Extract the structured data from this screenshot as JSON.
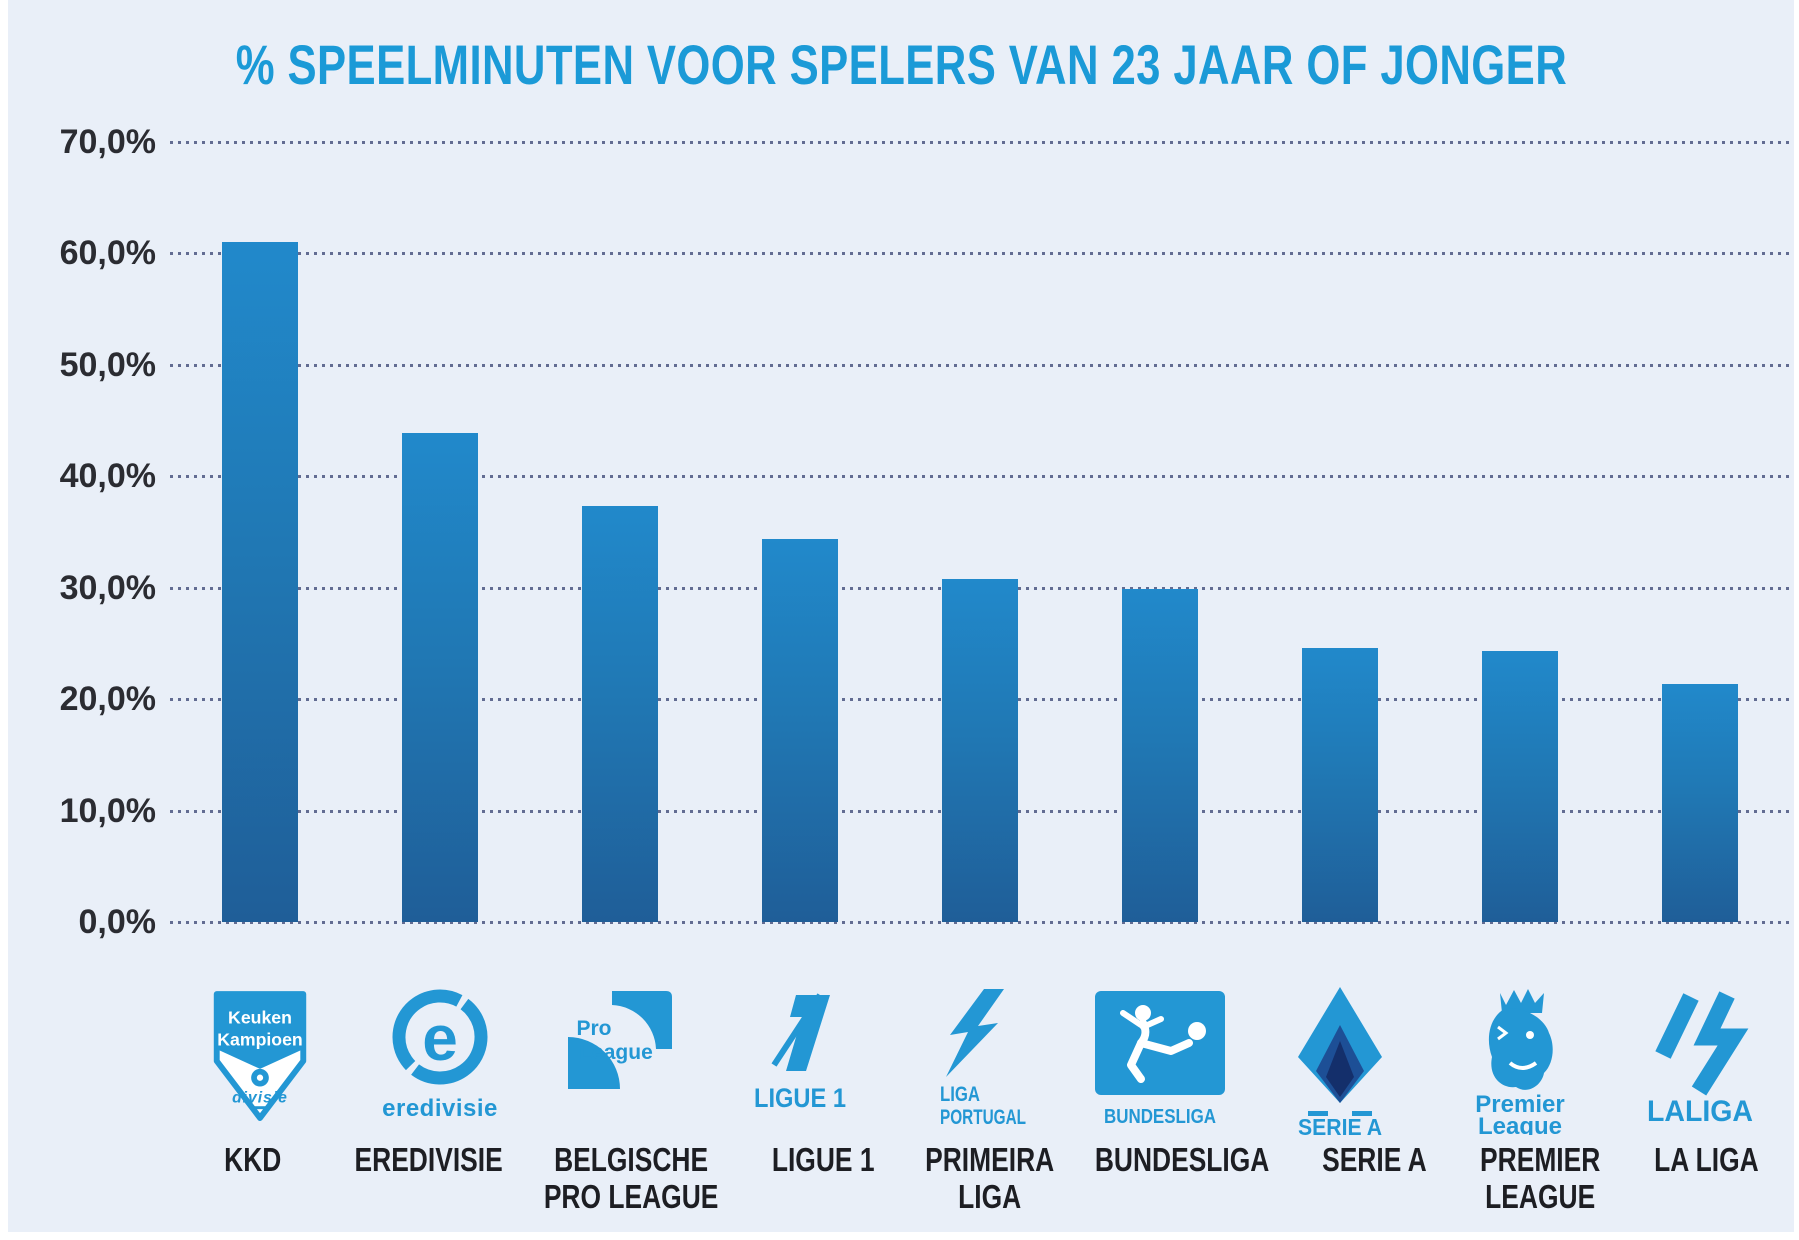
{
  "title": "% SPEELMINUTEN VOOR SPELERS VAN 23 JAAR OF JONGER",
  "chart_data": {
    "type": "bar",
    "title": "% SPEELMINUTEN VOOR SPELERS VAN 23 JAAR OF JONGER",
    "categories": [
      "KKD",
      "EREDIVISIE",
      "BELGISCHE PRO LEAGUE",
      "LIGUE 1",
      "PRIMEIRA LIGA",
      "BUNDESLIGA",
      "SERIE A",
      "PREMIER LEAGUE",
      "LA LIGA"
    ],
    "values": [
      61.0,
      43.9,
      37.3,
      34.4,
      30.8,
      29.9,
      24.6,
      24.3,
      21.4
    ],
    "xlabel": "",
    "ylabel": "",
    "ylim": [
      0,
      70
    ],
    "ytick_step": 10,
    "ytick_labels_top_to_bottom": [
      "70,0%",
      "60,0%",
      "50,0%",
      "40,0%",
      "30,0%",
      "20,0%",
      "10,0%",
      "0,0%"
    ],
    "grid": "horizontal-dotted",
    "legend": "none"
  },
  "colors": {
    "background": "#e9eff8",
    "title_blue": "#1b9ad7",
    "logo_blue": "#2397d4",
    "bar_top": "#2189cb",
    "bar_bottom": "#1f5e98",
    "gridline": "#4a5580",
    "axis_label": "#2b2c32",
    "caption": "#1d1e23"
  },
  "columns": [
    {
      "caption_lines": [
        "KKD"
      ],
      "logo": "keuken-kampioen-divisie-logo",
      "logo_texts": {
        "line1": "Keuken",
        "line2": "Kampioen",
        "line3": "divisie"
      }
    },
    {
      "caption_lines": [
        "EREDIVISIE"
      ],
      "logo": "eredivisie-logo",
      "logo_texts": {
        "name": "eredivisie"
      }
    },
    {
      "caption_lines": [
        "BELGISCHE",
        "PRO LEAGUE"
      ],
      "logo": "pro-league-logo",
      "logo_texts": {
        "line1": "Pro",
        "line2": "League"
      }
    },
    {
      "caption_lines": [
        "LIGUE 1"
      ],
      "logo": "ligue-1-logo",
      "logo_texts": {
        "name": "LIGUE 1"
      }
    },
    {
      "caption_lines": [
        "PRIMEIRA",
        "LIGA"
      ],
      "logo": "liga-portugal-logo",
      "logo_texts": {
        "line1": "LIGA",
        "line2": "PORTUGAL"
      }
    },
    {
      "caption_lines": [
        "BUNDESLIGA"
      ],
      "logo": "bundesliga-logo",
      "logo_texts": {
        "name": "BUNDESLIGA"
      }
    },
    {
      "caption_lines": [
        "SERIE A"
      ],
      "logo": "serie-a-logo",
      "logo_texts": {
        "name": "SERIE A"
      }
    },
    {
      "caption_lines": [
        "PREMIER",
        "LEAGUE"
      ],
      "logo": "premier-league-logo",
      "logo_texts": {
        "line1": "Premier",
        "line2": "League"
      }
    },
    {
      "caption_lines": [
        "LA LIGA"
      ],
      "logo": "laliga-logo",
      "logo_texts": {
        "name": "LALIGA"
      }
    }
  ]
}
